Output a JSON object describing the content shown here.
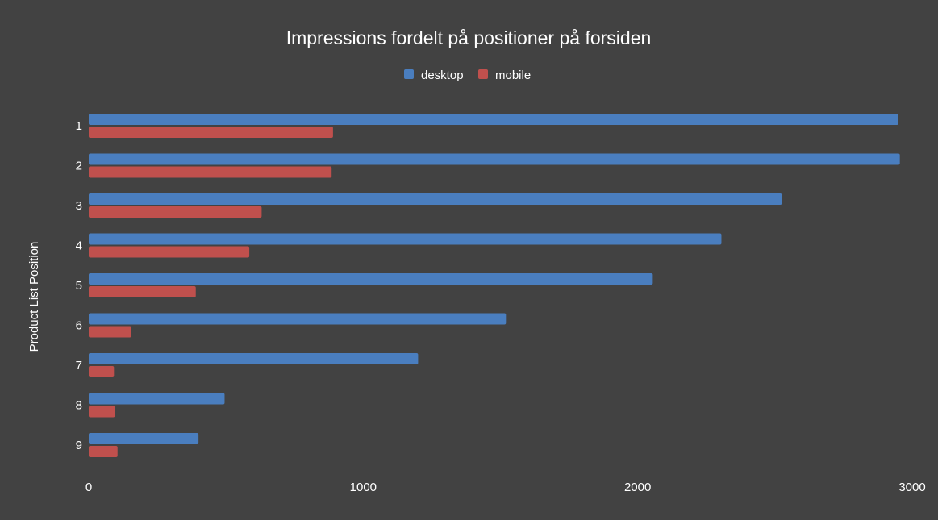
{
  "chart_data": {
    "type": "bar",
    "orientation": "horizontal",
    "title": "Impressions fordelt på positioner på forsiden",
    "ylabel": "Product List Position",
    "xlabel": "",
    "categories": [
      "1",
      "2",
      "3",
      "4",
      "5",
      "6",
      "7",
      "8",
      "9"
    ],
    "series": [
      {
        "name": "desktop",
        "color": "#4a7ebf",
        "values": [
          2950,
          2955,
          2525,
          2305,
          2055,
          1520,
          1200,
          495,
          400
        ]
      },
      {
        "name": "mobile",
        "color": "#c0504d",
        "values": [
          890,
          885,
          630,
          585,
          390,
          155,
          92,
          95,
          105
        ]
      }
    ],
    "xlim": [
      0,
      3000
    ],
    "xticks": [
      "0",
      "1000",
      "2000",
      "3000"
    ],
    "grid": false,
    "legend_position": "top-center",
    "background": "#424242"
  }
}
